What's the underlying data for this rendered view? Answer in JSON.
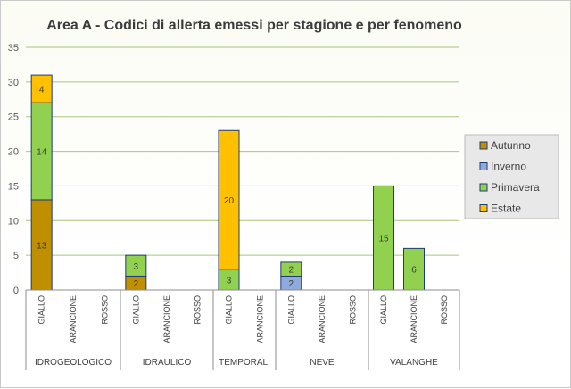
{
  "chart_data": {
    "type": "bar",
    "stacked": true,
    "title": "Area A - Codici di allerta emessi per stagione e per fenomeno",
    "xlabel": "",
    "ylabel": "",
    "ylim": [
      0,
      35
    ],
    "yticks": [
      0,
      5,
      10,
      15,
      20,
      25,
      30,
      35
    ],
    "grid": true,
    "legend_position": "right",
    "groups": [
      {
        "name": "IDROGEOLOGICO",
        "categories": [
          "GIALLO",
          "ARANCIONE",
          "ROSSO"
        ]
      },
      {
        "name": "IDRAULICO",
        "categories": [
          "GIALLO",
          "ARANCIONE",
          "ROSSO"
        ]
      },
      {
        "name": "TEMPORALI",
        "categories": [
          "GIALLO",
          "ARANCIONE"
        ]
      },
      {
        "name": "NEVE",
        "categories": [
          "GIALLO",
          "ARANCIONE",
          "ROSSO"
        ]
      },
      {
        "name": "VALANGHE",
        "categories": [
          "GIALLO",
          "ARANCIONE",
          "ROSSO"
        ]
      }
    ],
    "categories": [
      "GIALLO",
      "ARANCIONE",
      "ROSSO",
      "GIALLO",
      "ARANCIONE",
      "ROSSO",
      "GIALLO",
      "ARANCIONE",
      "GIALLO",
      "ARANCIONE",
      "ROSSO",
      "GIALLO",
      "ARANCIONE",
      "ROSSO"
    ],
    "series": [
      {
        "name": "Autunno",
        "color": "#bf8f00",
        "values": [
          13,
          0,
          0,
          2,
          0,
          0,
          0,
          0,
          0,
          0,
          0,
          0,
          0,
          0
        ]
      },
      {
        "name": "Inverno",
        "color": "#8faadc",
        "values": [
          0,
          0,
          0,
          0,
          0,
          0,
          0,
          0,
          2,
          0,
          0,
          0,
          0,
          0
        ]
      },
      {
        "name": "Primavera",
        "color": "#92d050",
        "values": [
          14,
          0,
          0,
          3,
          0,
          0,
          3,
          0,
          2,
          0,
          0,
          15,
          6,
          0
        ]
      },
      {
        "name": "Estate",
        "color": "#ffc000",
        "values": [
          4,
          0,
          0,
          0,
          0,
          0,
          20,
          0,
          0,
          0,
          0,
          0,
          0,
          0
        ]
      }
    ],
    "colors": {
      "background": "#fbfcf4",
      "grid": "#a9c47f",
      "axis": "#8c8c8c",
      "bar_outline": "#1f3b73",
      "legend_bg": "#e8e8e8"
    }
  }
}
